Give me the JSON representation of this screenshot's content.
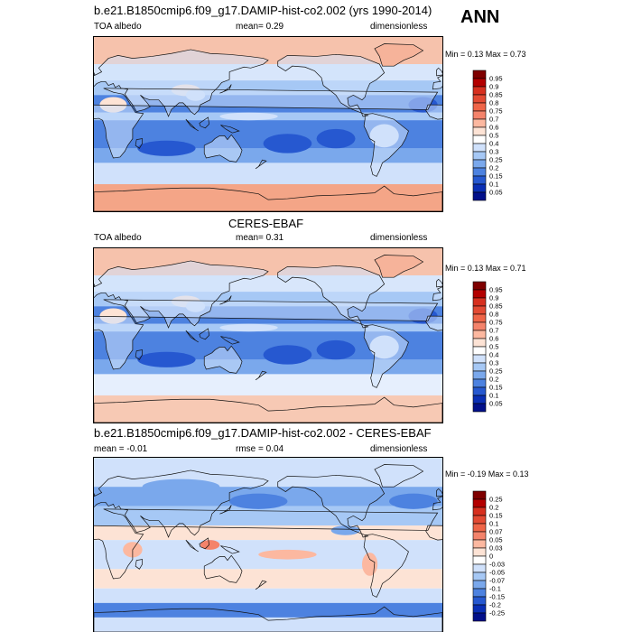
{
  "annotation": "ANN",
  "panels": [
    {
      "title": "b.e21.B1850cmip6.f09_g17.DAMIP-hist-co2.002 (yrs 1990-2014)",
      "left": "TOA albedo",
      "center": "mean=   0.29",
      "right": "dimensionless",
      "minmax": "Min =   0.13 Max =   0.73",
      "colorbar": {
        "labels": [
          "0.95",
          "0.9",
          "0.85",
          "0.8",
          "0.75",
          "0.7",
          "0.6",
          "0.5",
          "0.4",
          "0.3",
          "0.25",
          "0.2",
          "0.15",
          "0.1",
          "0.05"
        ],
        "colors": [
          "#7f0000",
          "#b30000",
          "#d7301f",
          "#e34a33",
          "#ef6548",
          "#f4836b",
          "#fcb8a0",
          "#fde3d5",
          "#ffffff",
          "#d0e1fb",
          "#a6c8f5",
          "#7aa8ec",
          "#4d82e0",
          "#2658d0",
          "#0a2fb5",
          "#02108a"
        ]
      }
    },
    {
      "title": "CERES-EBAF",
      "left": "TOA albedo",
      "center": "mean=   0.31",
      "right": "dimensionless",
      "minmax": "Min =   0.13 Max =   0.71",
      "colorbar": {
        "labels": [
          "0.95",
          "0.9",
          "0.85",
          "0.8",
          "0.75",
          "0.7",
          "0.6",
          "0.5",
          "0.4",
          "0.3",
          "0.25",
          "0.2",
          "0.15",
          "0.1",
          "0.05"
        ],
        "colors": [
          "#7f0000",
          "#b30000",
          "#d7301f",
          "#e34a33",
          "#ef6548",
          "#f4836b",
          "#fcb8a0",
          "#fde3d5",
          "#ffffff",
          "#d0e1fb",
          "#a6c8f5",
          "#7aa8ec",
          "#4d82e0",
          "#2658d0",
          "#0a2fb5",
          "#02108a"
        ]
      }
    },
    {
      "title": "b.e21.B1850cmip6.f09_g17.DAMIP-hist-co2.002 - CERES-EBAF",
      "left": "mean =  -0.01",
      "center": "rmse =   0.04",
      "right": "dimensionless",
      "minmax": "Min =  -0.19 Max =   0.13",
      "colorbar": {
        "labels": [
          "0.25",
          "0.2",
          "0.15",
          "0.1",
          "0.07",
          "0.05",
          "0.03",
          "0",
          "-0.03",
          "-0.05",
          "-0.07",
          "-0.1",
          "-0.15",
          "-0.2",
          "-0.25"
        ],
        "colors": [
          "#7f0000",
          "#b30000",
          "#d7301f",
          "#e34a33",
          "#ef6548",
          "#f4836b",
          "#fcb8a0",
          "#fde3d5",
          "#ffffff",
          "#d0e1fb",
          "#a6c8f5",
          "#7aa8ec",
          "#4d82e0",
          "#2658d0",
          "#0a2fb5",
          "#02108a"
        ]
      }
    }
  ],
  "chart_data": [
    {
      "type": "heatmap",
      "title": "b.e21.B1850cmip6.f09_g17.DAMIP-hist-co2.002 (yrs 1990-2014)",
      "variable": "TOA albedo",
      "units": "dimensionless",
      "mean": 0.29,
      "min": 0.13,
      "max": 0.73,
      "season": "ANN",
      "contour_levels": [
        0.05,
        0.1,
        0.15,
        0.2,
        0.25,
        0.3,
        0.4,
        0.5,
        0.6,
        0.7,
        0.75,
        0.8,
        0.85,
        0.9,
        0.95
      ],
      "lon_range": [
        0,
        360
      ],
      "lat_range": [
        -90,
        90
      ]
    },
    {
      "type": "heatmap",
      "title": "CERES-EBAF",
      "variable": "TOA albedo",
      "units": "dimensionless",
      "mean": 0.31,
      "min": 0.13,
      "max": 0.71,
      "season": "ANN",
      "contour_levels": [
        0.05,
        0.1,
        0.15,
        0.2,
        0.25,
        0.3,
        0.4,
        0.5,
        0.6,
        0.7,
        0.75,
        0.8,
        0.85,
        0.9,
        0.95
      ],
      "lon_range": [
        0,
        360
      ],
      "lat_range": [
        -90,
        90
      ]
    },
    {
      "type": "heatmap",
      "title": "b.e21.B1850cmip6.f09_g17.DAMIP-hist-co2.002 - CERES-EBAF",
      "units": "dimensionless",
      "mean": -0.01,
      "rmse": 0.04,
      "min": -0.19,
      "max": 0.13,
      "season": "ANN",
      "contour_levels": [
        -0.25,
        -0.2,
        -0.15,
        -0.1,
        -0.07,
        -0.05,
        -0.03,
        0,
        0.03,
        0.05,
        0.07,
        0.1,
        0.15,
        0.2,
        0.25
      ],
      "lon_range": [
        0,
        360
      ],
      "lat_range": [
        -90,
        90
      ]
    }
  ]
}
